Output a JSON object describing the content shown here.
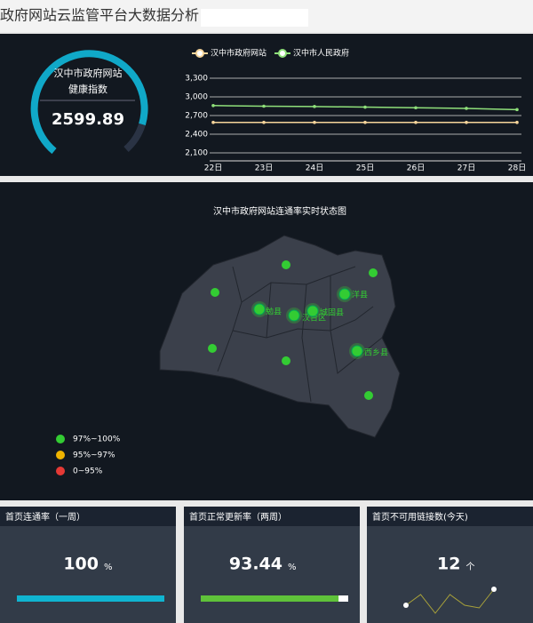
{
  "header": {
    "title": "政府网站云监管平台大数据分析"
  },
  "gauge": {
    "label_1": "汉中市政府网站",
    "label_2": "健康指数",
    "value": "2599.89"
  },
  "chart_data": {
    "type": "line",
    "categories": [
      "22日",
      "23日",
      "24日",
      "25日",
      "26日",
      "27日",
      "28日"
    ],
    "series": [
      {
        "name": "汉中市政府网站",
        "color": "#f5d49a",
        "values": [
          2590,
          2590,
          2590,
          2590,
          2590,
          2590,
          2590
        ]
      },
      {
        "name": "汉中市人民政府",
        "color": "#8fe07a",
        "values": [
          2860,
          2850,
          2845,
          2835,
          2825,
          2815,
          2795
        ]
      }
    ],
    "ylim": [
      2100,
      3300
    ],
    "yticks": [
      {
        "value": 2100,
        "label": "2,100"
      },
      {
        "value": 2400,
        "label": "2,400"
      },
      {
        "value": 2700,
        "label": "2,700"
      },
      {
        "value": 3000,
        "label": "3,000"
      },
      {
        "value": 3300,
        "label": "3,300"
      }
    ],
    "grid": true
  },
  "map": {
    "title": "汉中市政府网站连通率实时状态图",
    "labels": [
      "勉县",
      "汉台区",
      "城固县",
      "洋县",
      "西乡县"
    ],
    "legend": [
      {
        "label": "97%~100%",
        "color": "#33cc33"
      },
      {
        "label": "95%~97%",
        "color": "#f0b400"
      },
      {
        "label": "0~95%",
        "color": "#e53935"
      }
    ]
  },
  "cards": [
    {
      "title": "首页连通率（一周）",
      "value": 100,
      "unit": "%",
      "color": "#10b4d0"
    },
    {
      "title": "首页正常更新率（两周）",
      "value": 93.44,
      "unit": "%",
      "color": "#5fc23a"
    },
    {
      "title": "首页不可用链接数(今天)",
      "value": 12,
      "unit": "个",
      "values": [
        3,
        5,
        1.5,
        5,
        3,
        2.5,
        6
      ]
    }
  ],
  "bar_xlim": [
    0,
    100
  ]
}
